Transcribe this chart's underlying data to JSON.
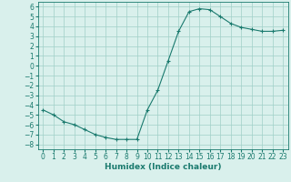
{
  "x": [
    0,
    1,
    2,
    3,
    4,
    5,
    6,
    7,
    8,
    9,
    10,
    11,
    12,
    13,
    14,
    15,
    16,
    17,
    18,
    19,
    20,
    21,
    22,
    23
  ],
  "y": [
    -4.5,
    -5.0,
    -5.7,
    -6.0,
    -6.5,
    -7.0,
    -7.3,
    -7.5,
    -7.5,
    -7.5,
    -4.5,
    -2.5,
    0.5,
    3.5,
    5.5,
    5.8,
    5.7,
    5.0,
    4.3,
    3.9,
    3.7,
    3.5,
    3.5,
    3.6
  ],
  "line_color": "#1a7a6e",
  "marker": "+",
  "bg_color": "#d9f0ec",
  "grid_color": "#a0cfc8",
  "xlabel": "Humidex (Indice chaleur)",
  "xlim": [
    -0.5,
    23.5
  ],
  "ylim": [
    -8.5,
    6.5
  ],
  "yticks": [
    -8,
    -7,
    -6,
    -5,
    -4,
    -3,
    -2,
    -1,
    0,
    1,
    2,
    3,
    4,
    5,
    6
  ],
  "xticks": [
    0,
    1,
    2,
    3,
    4,
    5,
    6,
    7,
    8,
    9,
    10,
    11,
    12,
    13,
    14,
    15,
    16,
    17,
    18,
    19,
    20,
    21,
    22,
    23
  ],
  "tick_fontsize": 5.5,
  "xlabel_fontsize": 6.5
}
